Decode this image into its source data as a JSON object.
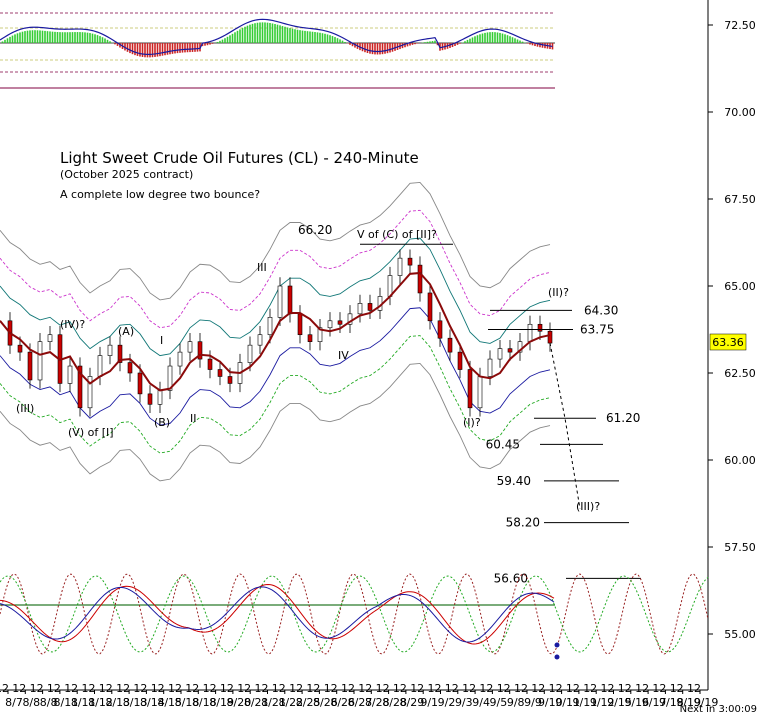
{
  "chart_data": {
    "type": "line",
    "title": "Light Sweet Crude Oil Futures (CL) - 240-Minute",
    "subtitle": "(October 2025 contract)",
    "note": "A complete low degree two bounce?",
    "ylim": [
      53.8,
      73.4
    ],
    "y_ticks": [
      "72.50",
      "70.00",
      "67.50",
      "65.00",
      "62.50",
      "60.00",
      "57.50",
      "55.00"
    ],
    "x_tick_labels": [
      "8/7",
      "8/8",
      "8/8",
      "8/11",
      "8/11",
      "8/12",
      "8/13",
      "8/13",
      "8/14",
      "8/15",
      "8/18",
      "8/18",
      "8/19",
      "8/20",
      "8/21",
      "8/21",
      "8/22",
      "8/25",
      "8/26",
      "8/26",
      "8/27",
      "8/28",
      "8/28",
      "8/29",
      "9/1",
      "9/2",
      "9/3",
      "9/4",
      "9/5",
      "9/8",
      "9/9",
      "9/10",
      "9/11",
      "9/11",
      "9/12",
      "9/15",
      "9/16",
      "9/17",
      "9/18",
      "9/19",
      "9/19"
    ],
    "hour_label": "12",
    "last_price": "63.36",
    "next_bar_label": "Next in 3:00:09",
    "price_path": [
      {
        "x": 0,
        "y": 64.0
      },
      {
        "x": 4,
        "y": 63.3
      },
      {
        "x": 8,
        "y": 63.1
      },
      {
        "x": 12,
        "y": 62.3
      },
      {
        "x": 16,
        "y": 63.4
      },
      {
        "x": 20,
        "y": 63.6
      },
      {
        "x": 24,
        "y": 62.2
      },
      {
        "x": 28,
        "y": 62.7
      },
      {
        "x": 32,
        "y": 61.5
      },
      {
        "x": 36,
        "y": 62.4
      },
      {
        "x": 40,
        "y": 63.0
      },
      {
        "x": 44,
        "y": 63.3
      },
      {
        "x": 48,
        "y": 62.8
      },
      {
        "x": 52,
        "y": 62.5
      },
      {
        "x": 56,
        "y": 61.9
      },
      {
        "x": 60,
        "y": 61.6
      },
      {
        "x": 64,
        "y": 62.0
      },
      {
        "x": 68,
        "y": 62.7
      },
      {
        "x": 72,
        "y": 63.1
      },
      {
        "x": 76,
        "y": 63.4
      },
      {
        "x": 80,
        "y": 62.9
      },
      {
        "x": 84,
        "y": 62.6
      },
      {
        "x": 88,
        "y": 62.4
      },
      {
        "x": 92,
        "y": 62.2
      },
      {
        "x": 96,
        "y": 62.8
      },
      {
        "x": 100,
        "y": 63.3
      },
      {
        "x": 104,
        "y": 63.6
      },
      {
        "x": 108,
        "y": 64.1
      },
      {
        "x": 112,
        "y": 65.0
      },
      {
        "x": 116,
        "y": 64.2
      },
      {
        "x": 120,
        "y": 63.6
      },
      {
        "x": 124,
        "y": 63.4
      },
      {
        "x": 128,
        "y": 63.8
      },
      {
        "x": 132,
        "y": 64.0
      },
      {
        "x": 136,
        "y": 63.9
      },
      {
        "x": 140,
        "y": 64.2
      },
      {
        "x": 144,
        "y": 64.5
      },
      {
        "x": 148,
        "y": 64.3
      },
      {
        "x": 152,
        "y": 64.7
      },
      {
        "x": 156,
        "y": 65.3
      },
      {
        "x": 160,
        "y": 65.8
      },
      {
        "x": 164,
        "y": 65.6
      },
      {
        "x": 168,
        "y": 64.8
      },
      {
        "x": 172,
        "y": 64.0
      },
      {
        "x": 176,
        "y": 63.5
      },
      {
        "x": 180,
        "y": 63.1
      },
      {
        "x": 184,
        "y": 62.6
      },
      {
        "x": 188,
        "y": 61.5
      },
      {
        "x": 192,
        "y": 62.4
      },
      {
        "x": 196,
        "y": 62.9
      },
      {
        "x": 200,
        "y": 63.2
      },
      {
        "x": 204,
        "y": 63.1
      },
      {
        "x": 208,
        "y": 63.4
      },
      {
        "x": 212,
        "y": 63.9
      },
      {
        "x": 216,
        "y": 63.7
      },
      {
        "x": 220,
        "y": 63.36
      }
    ],
    "projection_path": [
      {
        "x": 220,
        "y": 63.36
      },
      {
        "x": 226,
        "y": 61.2
      },
      {
        "x": 232,
        "y": 58.6
      }
    ],
    "levels": [
      {
        "label": "64.30",
        "value": 64.3
      },
      {
        "label": "63.75",
        "value": 63.75
      },
      {
        "label": "61.20",
        "value": 61.2
      },
      {
        "label": "60.45",
        "value": 60.45
      },
      {
        "label": "59.40",
        "value": 59.4
      },
      {
        "label": "58.20",
        "value": 58.2
      },
      {
        "label": "56.60",
        "value": 56.6
      },
      {
        "label": "66.20",
        "value": 66.2
      }
    ],
    "wave_labels": [
      "(III)",
      "(IV)?",
      "(V) of [I]",
      "(A)",
      "I",
      "(B)",
      "II",
      "III",
      "IV",
      "66.20",
      "V of (C) of [II]?",
      "(I)?",
      "(II)?",
      "(III)?"
    ]
  }
}
